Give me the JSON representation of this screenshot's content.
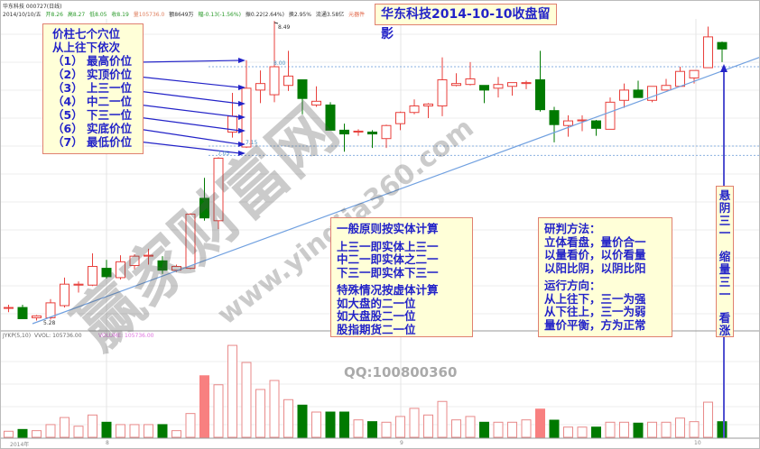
{
  "header": {
    "stock": "华东科技 000727(日线)",
    "date": "2014/10/10/五",
    "open": "开8.26",
    "high": "高8.27",
    "low": "低8.05",
    "close": "收8.19",
    "volume": "量105736.0",
    "amount": "额8649万",
    "change": "幅-0.13(-1.56%)",
    "amplitude": "振0.22(2.64%)",
    "turnover": "换2.95%",
    "float": "流通3.58亿",
    "sector": "元器件"
  },
  "title": "华东科技2014-10-10收盘留影",
  "left_box": {
    "lines": [
      "价柱七个穴位",
      "从上往下依次",
      "（1） 最高价位",
      "（2） 实顶价位",
      "（3） 上三一位",
      "（4） 中二一位",
      "（5） 下三一位",
      "（6） 实底价位",
      "（7） 最低价位"
    ]
  },
  "box1": {
    "lines": [
      "一般原则按实体计算",
      "上三一即实体上三一",
      "中二一即实体之二一",
      "下三一即实体下三一",
      "特殊情况按虚体计算",
      "如大盘的二一位",
      "如大盘股二一位",
      "股指期货二一位"
    ]
  },
  "box2": {
    "lines": [
      "研判方法：",
      "立体看盘，量价合一",
      "以量看价，以价看量",
      "以阳比阴，以阴比阳",
      "运行方向：",
      "从上往下，三一为强",
      "从下往上，三一为弱",
      "量价平衡，方为正常"
    ]
  },
  "vertical_box": {
    "lines": [
      "悬",
      "阴",
      "三",
      "一",
      "缩",
      "量",
      "三",
      "一",
      "看",
      "涨"
    ]
  },
  "volume_header": {
    "indicator": "JYKP(5,10)",
    "vvol": "VVOL: 105736.00",
    "volume": "VOLUME: 105736.00"
  },
  "watermark": {
    "main": "赢家财富网",
    "url": "www.yingjia360.com"
  },
  "qq": "QQ:100800360",
  "colors": {
    "up": "#e8403c",
    "down": "#007a00",
    "highlight": "#f88080",
    "annotation": "#2323c8",
    "trendline": "#70a0e0"
  },
  "chart_data": {
    "type": "candlestick",
    "price_labels": {
      "high": "8.49",
      "level_800": "8.00",
      "level_715": "7.15",
      "level_705": "7.05",
      "low": "5.28"
    },
    "dashed_levels": [
      8.0,
      7.15,
      7.05
    ],
    "x_tick_labels": [
      "2014年",
      "8",
      "9",
      "10"
    ],
    "ohlc": [
      [
        5.42,
        5.45,
        5.37,
        5.42
      ],
      [
        5.42,
        5.45,
        5.3,
        5.3
      ],
      [
        5.31,
        5.34,
        5.28,
        5.33
      ],
      [
        5.31,
        5.51,
        5.29,
        5.47
      ],
      [
        5.44,
        5.74,
        5.42,
        5.67
      ],
      [
        5.66,
        5.7,
        5.58,
        5.67
      ],
      [
        5.66,
        6.0,
        5.65,
        5.86
      ],
      [
        5.84,
        5.93,
        5.73,
        5.75
      ],
      [
        5.74,
        5.98,
        5.72,
        5.91
      ],
      [
        5.87,
        5.99,
        5.83,
        5.97
      ],
      [
        5.97,
        6.05,
        5.88,
        5.98
      ],
      [
        5.92,
        5.97,
        5.78,
        5.82
      ],
      [
        5.82,
        5.88,
        5.8,
        5.86
      ],
      [
        5.84,
        6.43,
        5.83,
        6.42
      ],
      [
        6.59,
        6.81,
        6.35,
        6.38
      ],
      [
        6.35,
        7.03,
        6.26,
        7.02
      ],
      [
        7.3,
        7.72,
        7.24,
        7.47
      ],
      [
        7.14,
        8.07,
        7.13,
        7.77
      ],
      [
        7.75,
        7.96,
        7.61,
        7.82
      ],
      [
        7.7,
        8.49,
        7.62,
        8.0
      ],
      [
        7.8,
        8.17,
        7.74,
        7.9
      ],
      [
        7.86,
        7.86,
        7.49,
        7.66
      ],
      [
        7.59,
        7.79,
        7.57,
        7.63
      ],
      [
        7.59,
        7.62,
        7.32,
        7.32
      ],
      [
        7.32,
        7.39,
        7.09,
        7.28
      ],
      [
        7.3,
        7.33,
        7.26,
        7.31
      ],
      [
        7.3,
        7.32,
        7.13,
        7.28
      ],
      [
        7.23,
        7.38,
        7.13,
        7.37
      ],
      [
        7.39,
        7.52,
        7.32,
        7.51
      ],
      [
        7.51,
        7.65,
        7.49,
        7.58
      ],
      [
        7.58,
        7.61,
        7.45,
        7.6
      ],
      [
        7.58,
        8.1,
        7.47,
        7.86
      ],
      [
        7.8,
        7.93,
        7.79,
        7.82
      ],
      [
        7.81,
        8.05,
        7.8,
        7.87
      ],
      [
        7.8,
        7.8,
        7.61,
        7.75
      ],
      [
        7.77,
        7.89,
        7.67,
        7.81
      ],
      [
        7.79,
        7.83,
        7.69,
        7.83
      ],
      [
        7.82,
        7.85,
        7.76,
        7.83
      ],
      [
        7.86,
        8.17,
        7.52,
        7.54
      ],
      [
        7.53,
        7.57,
        7.19,
        7.38
      ],
      [
        7.37,
        7.48,
        7.25,
        7.42
      ],
      [
        7.42,
        7.48,
        7.31,
        7.43
      ],
      [
        7.42,
        7.43,
        7.26,
        7.34
      ],
      [
        7.33,
        7.67,
        7.33,
        7.62
      ],
      [
        7.64,
        7.82,
        7.56,
        7.75
      ],
      [
        7.75,
        7.85,
        7.67,
        7.67
      ],
      [
        7.64,
        7.79,
        7.62,
        7.79
      ],
      [
        7.75,
        7.87,
        7.75,
        7.8
      ],
      [
        7.79,
        8.0,
        7.79,
        7.95
      ],
      [
        7.88,
        7.96,
        7.82,
        7.96
      ],
      [
        7.99,
        8.43,
        7.99,
        8.32
      ],
      [
        8.26,
        8.27,
        8.05,
        8.19
      ]
    ],
    "volume": [
      41000,
      53000,
      45000,
      86000,
      134000,
      75000,
      151000,
      102000,
      86000,
      86000,
      86000,
      86000,
      45000,
      161000,
      417000,
      356000,
      623000,
      507000,
      324000,
      385000,
      255000,
      218000,
      171000,
      171000,
      171000,
      118000,
      106000,
      102000,
      141000,
      196000,
      151000,
      243000,
      118000,
      141000,
      102000,
      102000,
      102000,
      118000,
      191000,
      116000,
      69000,
      69000,
      69000,
      102000,
      102000,
      96000,
      102000,
      102000,
      130000,
      106000,
      238000,
      105736
    ],
    "volume_highlight": [
      15,
      39
    ]
  }
}
